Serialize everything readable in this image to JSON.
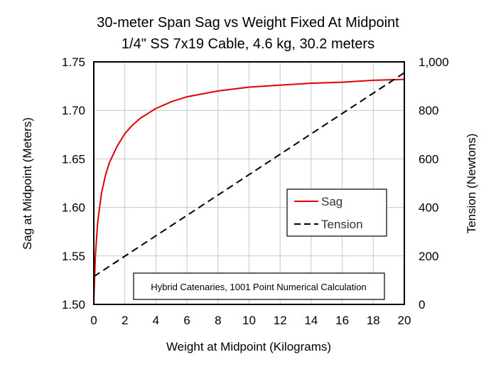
{
  "chart_data": {
    "type": "line",
    "title": "30-meter Span Sag vs Weight Fixed At Midpoint",
    "subtitle": "1/4\" SS 7x19 Cable, 4.6 kg, 30.2 meters",
    "xlabel": "Weight at Midpoint (Kilograms)",
    "ylabel": "Sag at Midpoint (Meters)",
    "y2label": "Tension (Newtons)",
    "xlim": [
      0,
      20
    ],
    "ylim": [
      1.5,
      1.75
    ],
    "y2lim": [
      0,
      1000
    ],
    "x_ticks": [
      "0",
      "2",
      "4",
      "6",
      "8",
      "10",
      "12",
      "14",
      "16",
      "18",
      "20"
    ],
    "y_ticks": [
      "1.50",
      "1.55",
      "1.60",
      "1.65",
      "1.70",
      "1.75"
    ],
    "y2_ticks": [
      "0",
      "200",
      "400",
      "600",
      "800",
      "1,000"
    ],
    "grid": true,
    "legend_position": "center-right",
    "annotation": "Hybrid Catenaries, 1001 Point Numerical Calculation",
    "series": [
      {
        "name": "Sag",
        "axis": "left",
        "color": "#e00000",
        "style": "solid",
        "x": [
          0,
          0.1,
          0.25,
          0.5,
          0.75,
          1,
          1.5,
          2,
          2.5,
          3,
          3.5,
          4,
          5,
          6,
          7,
          8,
          10,
          12,
          14,
          16,
          18,
          20
        ],
        "y": [
          1.503,
          1.55,
          1.585,
          1.615,
          1.633,
          1.646,
          1.663,
          1.676,
          1.685,
          1.692,
          1.697,
          1.702,
          1.709,
          1.714,
          1.717,
          1.72,
          1.724,
          1.726,
          1.728,
          1.729,
          1.731,
          1.732
        ]
      },
      {
        "name": "Tension",
        "axis": "right",
        "color": "#000000",
        "style": "dashed",
        "x": [
          0,
          20
        ],
        "y": [
          115,
          955
        ]
      }
    ]
  }
}
